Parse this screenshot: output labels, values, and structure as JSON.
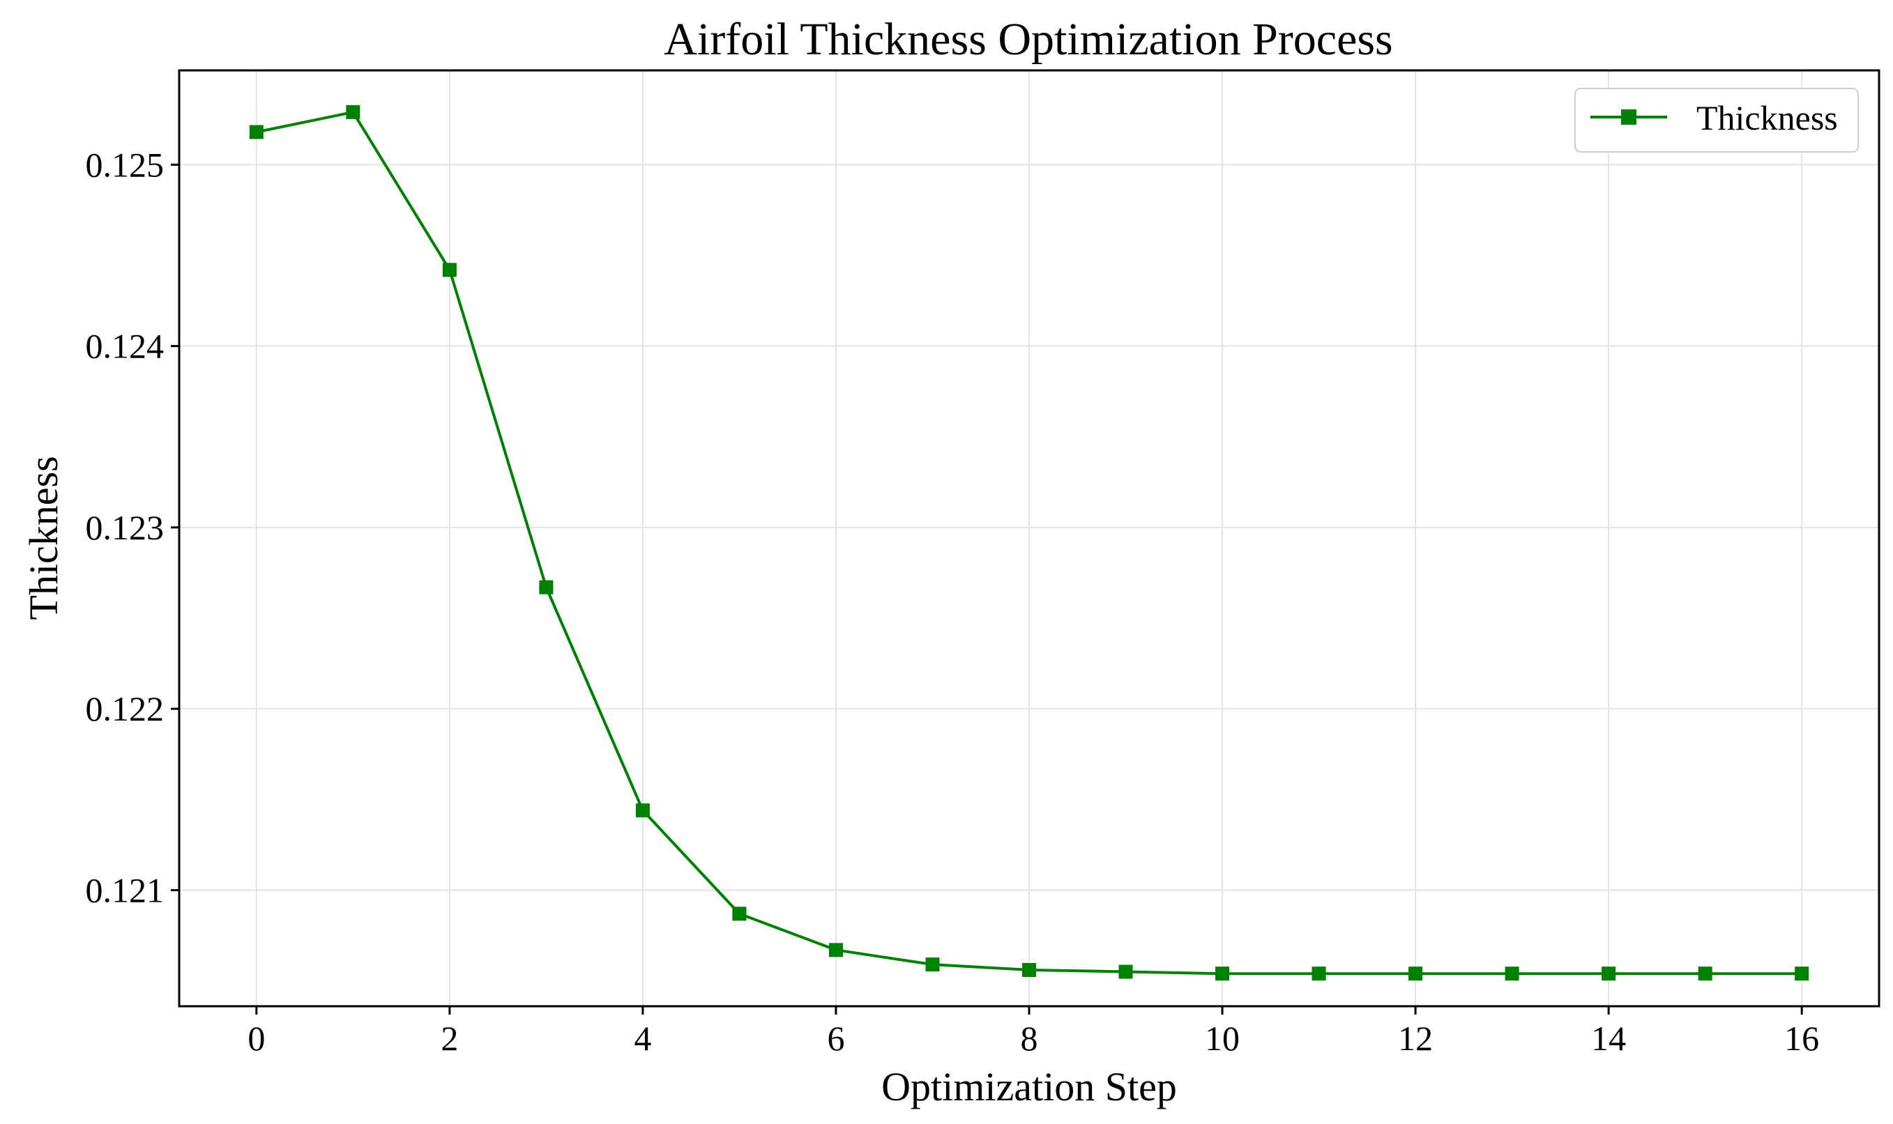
{
  "chart_data": {
    "type": "line",
    "title": "Airfoil Thickness Optimization Process",
    "xlabel": "Optimization Step",
    "ylabel": "Thickness",
    "xlim": [
      -0.8,
      16.8
    ],
    "ylim": [
      0.12036,
      0.12552
    ],
    "xticks": [
      0,
      2,
      4,
      6,
      8,
      10,
      12,
      14,
      16
    ],
    "xtick_labels": [
      "0",
      "2",
      "4",
      "6",
      "8",
      "10",
      "12",
      "14",
      "16"
    ],
    "yticks": [
      0.121,
      0.122,
      0.123,
      0.124,
      0.125
    ],
    "ytick_labels": [
      "0.121",
      "0.122",
      "0.123",
      "0.124",
      "0.125"
    ],
    "grid": true,
    "legend_position": "top-right",
    "series": [
      {
        "name": "Thickness",
        "color": "#008000",
        "marker": "square",
        "x": [
          0,
          1,
          2,
          3,
          4,
          5,
          6,
          7,
          8,
          9,
          10,
          11,
          12,
          13,
          14,
          15,
          16
        ],
        "values": [
          0.12518,
          0.12529,
          0.12442,
          0.12267,
          0.12144,
          0.12087,
          0.12067,
          0.12059,
          0.12056,
          0.12055,
          0.12054,
          0.12054,
          0.12054,
          0.12054,
          0.12054,
          0.12054,
          0.12054
        ]
      }
    ]
  }
}
